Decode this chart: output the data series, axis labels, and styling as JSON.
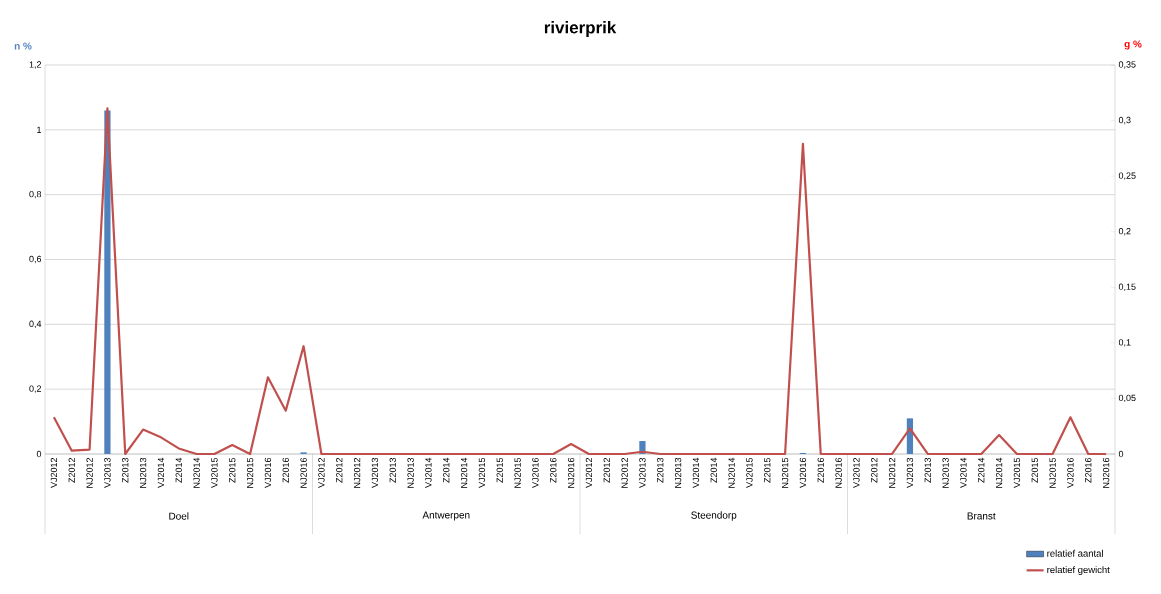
{
  "chart_data": {
    "type": "bar",
    "title": "rivierprik",
    "ylabel": "n %",
    "y2label": "g %",
    "categories": [
      "VJ2012",
      "Z2012",
      "NJ2012",
      "VJ2013",
      "Z2013",
      "NJ2013",
      "VJ2014",
      "Z2014",
      "NJ2014",
      "VJ2015",
      "Z2015",
      "NJ2015",
      "VJ2016",
      "Z2016",
      "NJ2016",
      "VJ2012",
      "Z2012",
      "NJ2012",
      "VJ2013",
      "Z2013",
      "NJ2013",
      "VJ2014",
      "Z2014",
      "NJ2014",
      "VJ2015",
      "Z2015",
      "NJ2015",
      "VJ2016",
      "Z2016",
      "NJ2016",
      "VJ2012",
      "Z2012",
      "NJ2012",
      "VJ2013",
      "Z2013",
      "NJ2013",
      "VJ2014",
      "Z2014",
      "NJ2014",
      "VJ2015",
      "Z2015",
      "NJ2015",
      "VJ2016",
      "Z2016",
      "NJ2016",
      "VJ2012",
      "Z2012",
      "NJ2012",
      "VJ2013",
      "Z2013",
      "NJ2013",
      "VJ2014",
      "Z2014",
      "NJ2014",
      "VJ2015",
      "Z2015",
      "NJ2015",
      "VJ2016",
      "Z2016",
      "NJ2016"
    ],
    "annotations": [
      "Doel",
      "Antwerpen",
      "Steendorp",
      "Branst"
    ],
    "series": [
      {
        "name": "relatief aantal",
        "axis": "y",
        "color": "#4f81bd",
        "values": [
          0,
          0,
          0,
          1.06,
          0,
          0,
          0,
          0,
          0,
          0,
          0,
          0,
          0,
          0,
          0.005,
          0,
          0,
          0,
          0,
          0,
          0,
          0,
          0,
          0,
          0,
          0,
          0,
          0,
          0,
          0,
          0,
          0,
          0,
          0.04,
          0,
          0,
          0,
          0,
          0,
          0,
          0,
          0,
          0.003,
          0,
          0,
          0,
          0,
          0,
          0.11,
          0,
          0,
          0,
          0,
          0,
          0,
          0,
          0,
          0,
          0,
          0
        ]
      },
      {
        "name": "relatief gewicht",
        "type": "line",
        "axis": "y2",
        "color": "#c0504d",
        "values": [
          0.033,
          0.003,
          0.004,
          0.311,
          0,
          0.022,
          0.015,
          0.005,
          0,
          0,
          0.008,
          0,
          0.069,
          0.039,
          0.097,
          0,
          0,
          0,
          0,
          0,
          0,
          0,
          0,
          0,
          0,
          0,
          0,
          0,
          0,
          0.009,
          0,
          0,
          0,
          0.002,
          0,
          0,
          0,
          0,
          0,
          0,
          0,
          0,
          0.279,
          0,
          0,
          0,
          0,
          0,
          0.023,
          0,
          0,
          0,
          0,
          0.017,
          0,
          0,
          0,
          0.033,
          0,
          0
        ]
      }
    ],
    "ylim": [
      0,
      1.2
    ],
    "yticks": [
      0,
      {
        "value": 0.2,
        "label": "0,2"
      },
      {
        "value": 0.4,
        "label": "0,4"
      },
      {
        "value": 0.6,
        "label": "0,6"
      },
      {
        "value": 0.8,
        "label": "0,8"
      },
      1,
      {
        "value": 1.2,
        "label": "1,2"
      }
    ],
    "y2lim": [
      0,
      0.35
    ],
    "y2ticks": [
      0,
      {
        "value": 0.05,
        "label": "0,05"
      },
      {
        "value": 0.1,
        "label": "0,1"
      },
      {
        "value": 0.15,
        "label": "0,15"
      },
      {
        "value": 0.2,
        "label": "0,2"
      },
      {
        "value": 0.25,
        "label": "0,25"
      },
      {
        "value": 0.3,
        "label": "0,3"
      },
      {
        "value": 0.35,
        "label": "0,35"
      }
    ],
    "grid": "y",
    "legend": "bottom right",
    "marker": "none",
    "line_style": "solid"
  }
}
